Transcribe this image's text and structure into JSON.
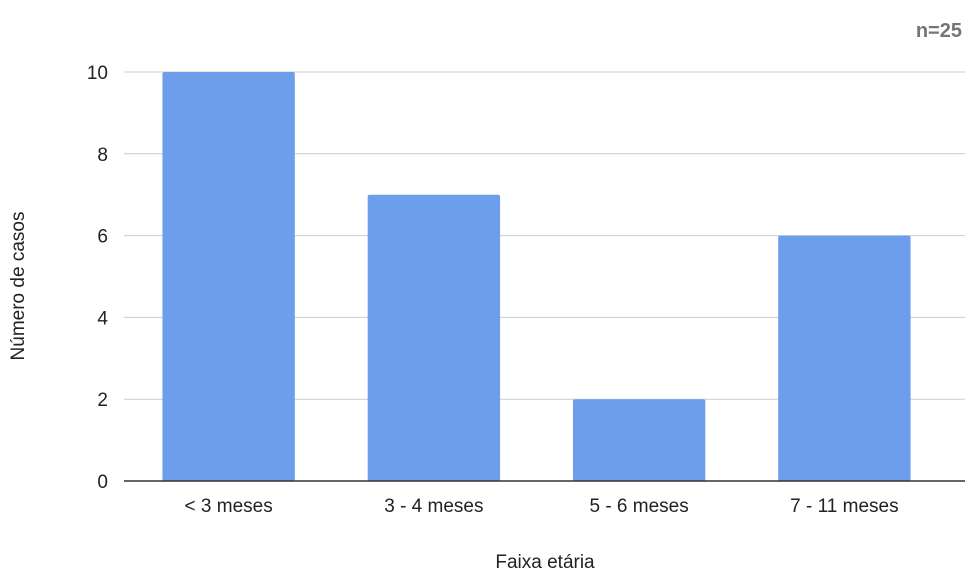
{
  "chart_data": {
    "type": "bar",
    "categories": [
      "< 3 meses",
      "3 - 4 meses",
      "5 - 6 meses",
      "7 - 11 meses"
    ],
    "values": [
      10,
      7,
      2,
      6
    ],
    "xlabel": "Faixa etária",
    "ylabel": "Número de casos",
    "ylim": [
      0,
      10
    ],
    "yticks": [
      0,
      2,
      4,
      6,
      8,
      10
    ],
    "annotation": "n=25",
    "grid": true,
    "legend": "none",
    "bar_color": "#6d9eeb",
    "grid_color": "#cccccc",
    "axis_color": "#333333"
  }
}
